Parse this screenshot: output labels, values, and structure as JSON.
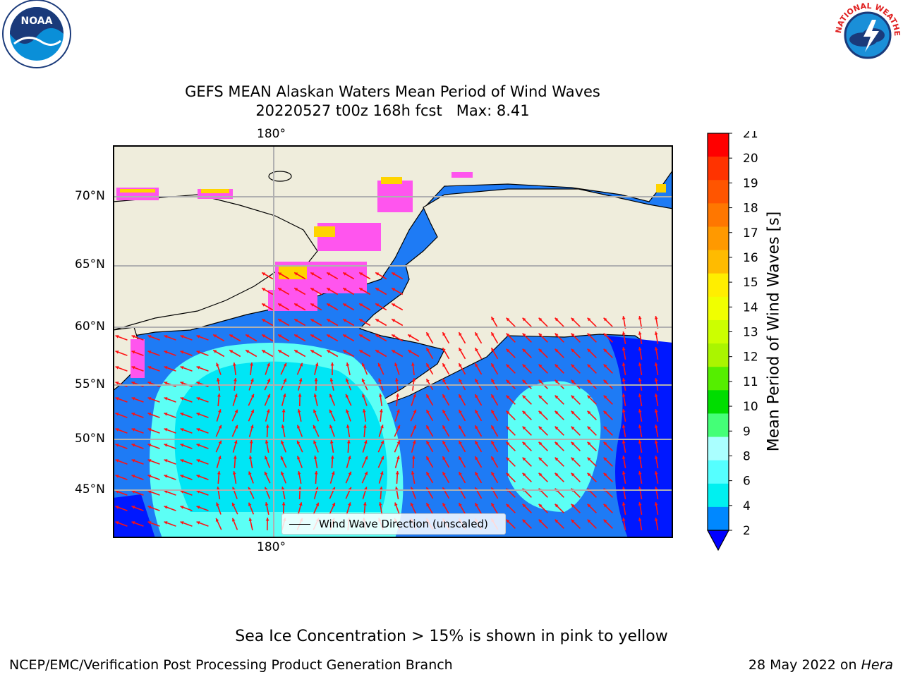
{
  "title": {
    "line1": "GEFS MEAN Alaskan Waters Mean Period of Wind Waves",
    "line2": "20220527 t00z 168h fcst   Max: 8.41"
  },
  "map": {
    "lon_top_label": "180°",
    "lon_bottom_label": "180°",
    "lat_labels": [
      "70°N",
      "65°N",
      "60°N",
      "55°N",
      "50°N",
      "45°N"
    ],
    "legend_label": "Wind Wave Direction (unscaled)",
    "colors": {
      "land": "#efeddc",
      "band_2_4": "#1e7bf5",
      "band_4_6": "#00e6f5",
      "band_6_8": "#5cfff5",
      "below_2": "#0018ff",
      "ice_pink": "#ff55ee",
      "ice_yellow": "#ffd400",
      "arrow": "#ff1010"
    }
  },
  "colorbar": {
    "label": "Mean Period of Wind Waves [s]",
    "ticks": [
      "21",
      "20",
      "19",
      "18",
      "17",
      "16",
      "15",
      "14",
      "13",
      "12",
      "11",
      "10",
      "9",
      "8",
      "6",
      "4",
      "2"
    ],
    "colors_top_to_bottom": [
      "#ff0000",
      "#ff3300",
      "#ff5500",
      "#ff7700",
      "#ff9900",
      "#ffbb00",
      "#ffee00",
      "#f0ff00",
      "#ccff00",
      "#aaf500",
      "#55ee00",
      "#00dd00",
      "#44ff77",
      "#aaffff",
      "#55ffff",
      "#00f0f0",
      "#0088ff"
    ],
    "under_color": "#0000ff"
  },
  "caption": "Sea Ice Concentration > 15% is shown in pink to yellow",
  "footer": {
    "left": "NCEP/EMC/Verification Post Processing Product Generation Branch",
    "right_date": "28 May 2022 on ",
    "right_machine": "Hera"
  },
  "logos": {
    "noaa_text": "NOAA",
    "nws_text": "NATIONAL WEATHER SERVICE"
  }
}
